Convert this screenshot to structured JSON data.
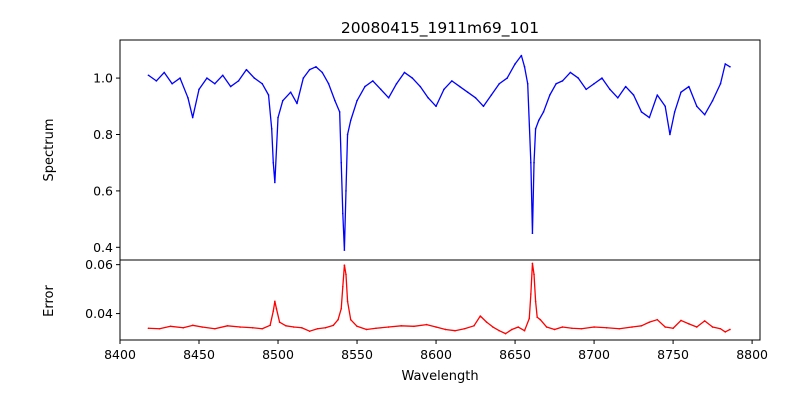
{
  "chart_data": [
    {
      "panel": "top",
      "type": "line",
      "title": "20080415_1911m69_101",
      "ylabel": "Spectrum",
      "xlim": [
        8400,
        8805
      ],
      "ylim": [
        0.355,
        1.135
      ],
      "yticks": [
        0.4,
        0.6,
        0.8,
        1.0
      ],
      "ytick_labels": [
        "0.4",
        "0.6",
        "0.8",
        "1.0"
      ],
      "grid": false,
      "series": [
        {
          "color": "#0000ff",
          "x": [
            8418,
            8423,
            8428,
            8433,
            8438,
            8443,
            8446,
            8450,
            8455,
            8460,
            8465,
            8470,
            8475,
            8480,
            8485,
            8490,
            8494,
            8496,
            8497,
            8498,
            8500,
            8503,
            8508,
            8512,
            8516,
            8520,
            8524,
            8528,
            8532,
            8536,
            8539,
            8540,
            8541,
            8542,
            8543,
            8544,
            8546,
            8550,
            8555,
            8560,
            8565,
            8570,
            8575,
            8580,
            8585,
            8590,
            8595,
            8600,
            8605,
            8610,
            8615,
            8620,
            8625,
            8630,
            8635,
            8640,
            8645,
            8650,
            8654,
            8656,
            8658,
            8660,
            8661,
            8662,
            8663,
            8665,
            8668,
            8672,
            8676,
            8680,
            8685,
            8690,
            8695,
            8700,
            8705,
            8710,
            8715,
            8720,
            8725,
            8730,
            8735,
            8740,
            8745,
            8748,
            8751,
            8755,
            8760,
            8765,
            8770,
            8775,
            8780,
            8783,
            8786
          ],
          "y": [
            1.01,
            0.99,
            1.02,
            0.98,
            1.0,
            0.93,
            0.86,
            0.96,
            1.0,
            0.98,
            1.01,
            0.97,
            0.99,
            1.03,
            1.0,
            0.98,
            0.94,
            0.82,
            0.7,
            0.63,
            0.86,
            0.92,
            0.95,
            0.91,
            1.0,
            1.03,
            1.04,
            1.02,
            0.98,
            0.92,
            0.88,
            0.7,
            0.52,
            0.39,
            0.6,
            0.8,
            0.85,
            0.92,
            0.97,
            0.99,
            0.96,
            0.93,
            0.98,
            1.02,
            1.0,
            0.97,
            0.93,
            0.9,
            0.96,
            0.99,
            0.97,
            0.95,
            0.93,
            0.9,
            0.94,
            0.98,
            1.0,
            1.05,
            1.08,
            1.04,
            0.98,
            0.7,
            0.45,
            0.7,
            0.82,
            0.85,
            0.88,
            0.94,
            0.98,
            0.99,
            1.02,
            1.0,
            0.96,
            0.98,
            1.0,
            0.96,
            0.93,
            0.97,
            0.94,
            0.88,
            0.86,
            0.94,
            0.9,
            0.8,
            0.88,
            0.95,
            0.97,
            0.9,
            0.87,
            0.92,
            0.98,
            1.05,
            1.04
          ]
        }
      ]
    },
    {
      "panel": "bottom",
      "type": "line",
      "xlabel": "Wavelength",
      "ylabel": "Error",
      "xlim": [
        8400,
        8805
      ],
      "ylim": [
        0.0292,
        0.0619
      ],
      "xticks": [
        8400,
        8450,
        8500,
        8550,
        8600,
        8650,
        8700,
        8750,
        8800
      ],
      "xtick_labels": [
        "8400",
        "8450",
        "8500",
        "8550",
        "8600",
        "8650",
        "8700",
        "8750",
        "8800"
      ],
      "yticks": [
        0.04,
        0.06
      ],
      "ytick_labels": [
        "0.04",
        "0.06"
      ],
      "grid": false,
      "series": [
        {
          "color": "#ff0000",
          "x": [
            8418,
            8425,
            8432,
            8440,
            8446,
            8452,
            8460,
            8468,
            8476,
            8484,
            8490,
            8495,
            8497,
            8498,
            8499,
            8501,
            8505,
            8510,
            8515,
            8520,
            8525,
            8530,
            8535,
            8538,
            8540,
            8541,
            8542,
            8543,
            8544,
            8546,
            8550,
            8556,
            8562,
            8570,
            8578,
            8586,
            8594,
            8600,
            8606,
            8612,
            8618,
            8624,
            8628,
            8632,
            8636,
            8640,
            8644,
            8648,
            8652,
            8656,
            8659,
            8660,
            8661,
            8662,
            8663,
            8664,
            8666,
            8670,
            8675,
            8680,
            8686,
            8692,
            8700,
            8708,
            8716,
            8724,
            8730,
            8735,
            8740,
            8745,
            8750,
            8755,
            8760,
            8765,
            8770,
            8775,
            8780,
            8783,
            8786
          ],
          "y": [
            0.034,
            0.0338,
            0.0348,
            0.0342,
            0.0352,
            0.0345,
            0.0338,
            0.035,
            0.0345,
            0.0342,
            0.0338,
            0.0352,
            0.041,
            0.045,
            0.042,
            0.0365,
            0.035,
            0.0345,
            0.0342,
            0.0328,
            0.0338,
            0.0342,
            0.0352,
            0.0375,
            0.042,
            0.051,
            0.0598,
            0.056,
            0.045,
            0.0375,
            0.0348,
            0.0335,
            0.034,
            0.0345,
            0.035,
            0.0348,
            0.0355,
            0.0345,
            0.0335,
            0.033,
            0.0338,
            0.035,
            0.039,
            0.0365,
            0.0345,
            0.033,
            0.0318,
            0.0335,
            0.0345,
            0.033,
            0.038,
            0.048,
            0.0605,
            0.056,
            0.045,
            0.0385,
            0.0375,
            0.0345,
            0.0335,
            0.0345,
            0.034,
            0.0338,
            0.0345,
            0.0342,
            0.0338,
            0.0345,
            0.035,
            0.0365,
            0.0375,
            0.0345,
            0.034,
            0.0372,
            0.0358,
            0.0345,
            0.037,
            0.0345,
            0.0338,
            0.0325,
            0.0335
          ]
        }
      ]
    }
  ]
}
